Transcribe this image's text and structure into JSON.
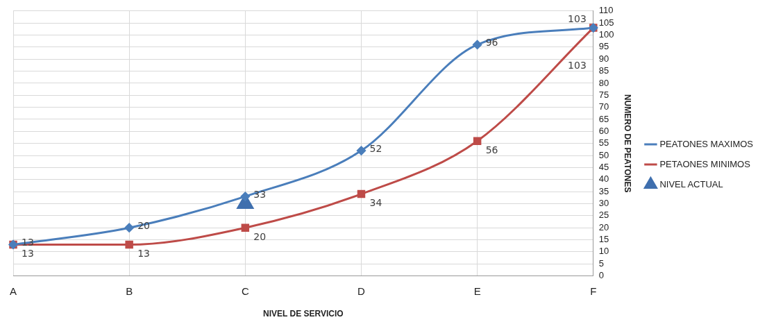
{
  "chart_data": {
    "type": "line",
    "xlabel": "NIVEL DE SERVICIO",
    "ylabel": "NUMERO DE PEATONES",
    "categories": [
      "A",
      "B",
      "C",
      "D",
      "E",
      "F"
    ],
    "ylim": [
      0,
      110
    ],
    "yticks": [
      0,
      5,
      10,
      15,
      20,
      25,
      30,
      35,
      40,
      45,
      50,
      55,
      60,
      65,
      70,
      75,
      80,
      85,
      90,
      95,
      100,
      105,
      110
    ],
    "series": [
      {
        "name": "PEATONES MAXIMOS",
        "color": "#4a7ebb",
        "marker": "diamond",
        "values": [
          13,
          20,
          33,
          52,
          96,
          103
        ],
        "value_labels": [
          "13",
          "20",
          "33",
          "52",
          "96",
          "103"
        ]
      },
      {
        "name": "PETAONES MINIMOS",
        "color": "#be4b48",
        "marker": "square",
        "values": [
          13,
          13,
          20,
          34,
          56,
          103
        ],
        "value_labels": [
          "13",
          "13",
          "20",
          "34",
          "56",
          "103"
        ]
      },
      {
        "name": "NIVEL ACTUAL",
        "type": "scatter",
        "color": "#3f6fae",
        "marker": "triangle",
        "x": [
          "C"
        ],
        "values": [
          30
        ]
      }
    ],
    "grid": true,
    "legend": "right"
  }
}
